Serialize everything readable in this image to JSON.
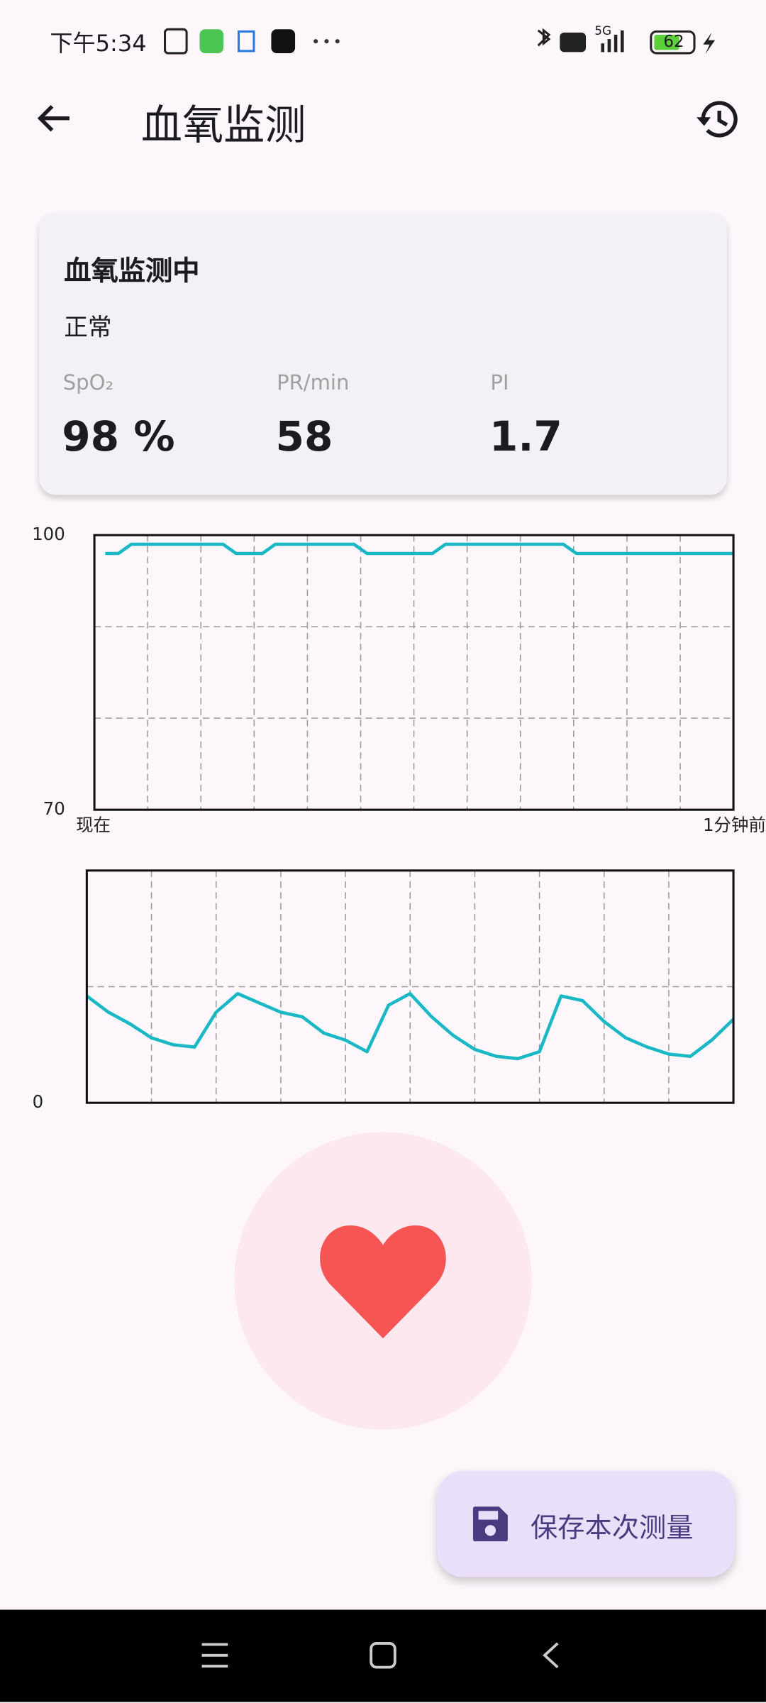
{
  "status_bar": {
    "time": "下午5:34",
    "network": "5G",
    "battery": "62"
  },
  "header": {
    "title": "血氧监测"
  },
  "card": {
    "title": "血氧监测中",
    "status": "正常",
    "metrics": [
      {
        "label": "SpO₂",
        "value": "98 %"
      },
      {
        "label": "PR/min",
        "value": "58"
      },
      {
        "label": "PI",
        "value": "1.7"
      }
    ]
  },
  "chart_data": [
    {
      "type": "line",
      "color": "#1ab8c4",
      "ylim": [
        70,
        100
      ],
      "yticks": [
        70,
        100
      ],
      "grid_y": [
        80,
        90
      ],
      "x_labels": [
        "现在",
        "1分钟前"
      ],
      "values": [
        98,
        98,
        99,
        99,
        99,
        99,
        99,
        99,
        99,
        99,
        98,
        98,
        98,
        99,
        99,
        99,
        99,
        99,
        99,
        99,
        98,
        98,
        98,
        98,
        98,
        98,
        99,
        99,
        99,
        99,
        99,
        99,
        99,
        99,
        99,
        99,
        98,
        98,
        98,
        98,
        98,
        98,
        98,
        98,
        98,
        98,
        98,
        98,
        98
      ]
    },
    {
      "type": "line",
      "color": "#1ab8c4",
      "ylim": [
        0,
        100
      ],
      "yticks": [
        0
      ],
      "grid_y": [
        50
      ],
      "values": [
        46,
        39,
        34,
        28,
        25,
        24,
        39,
        47,
        43,
        39,
        37,
        30,
        27,
        22,
        42,
        47,
        37,
        29,
        23,
        20,
        19,
        22,
        46,
        44,
        35,
        28,
        24,
        21,
        20,
        27,
        36
      ]
    }
  ],
  "button": {
    "label": "保存本次测量"
  }
}
